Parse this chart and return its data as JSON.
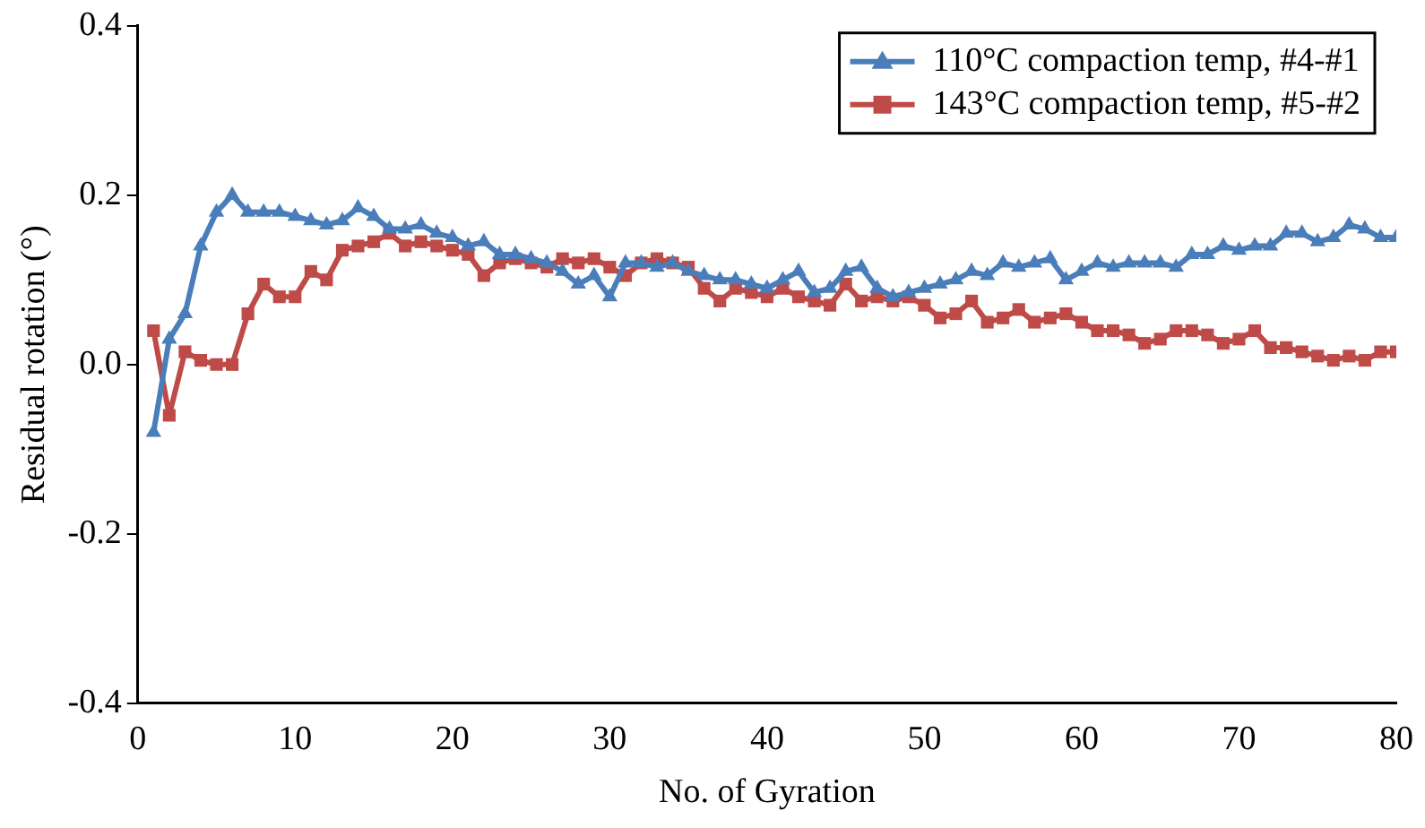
{
  "chart_data": {
    "type": "line",
    "xlabel": "No. of Gyration",
    "ylabel": "Residual rotation (°)",
    "x": [
      1,
      2,
      3,
      4,
      5,
      6,
      7,
      8,
      9,
      10,
      11,
      12,
      13,
      14,
      15,
      16,
      17,
      18,
      19,
      20,
      21,
      22,
      23,
      24,
      25,
      26,
      27,
      28,
      29,
      30,
      31,
      32,
      33,
      34,
      35,
      36,
      37,
      38,
      39,
      40,
      41,
      42,
      43,
      44,
      45,
      46,
      47,
      48,
      49,
      50,
      51,
      52,
      53,
      54,
      55,
      56,
      57,
      58,
      59,
      60,
      61,
      62,
      63,
      64,
      65,
      66,
      67,
      68,
      69,
      70,
      71,
      72,
      73,
      74,
      75,
      76,
      77,
      78,
      79,
      80
    ],
    "series": [
      {
        "name": "110°C compaction temp, #4-#1",
        "color": "#4a7ebb",
        "marker": "triangle",
        "values": [
          -0.08,
          0.03,
          0.06,
          0.14,
          0.18,
          0.2,
          0.18,
          0.18,
          0.18,
          0.175,
          0.17,
          0.165,
          0.17,
          0.185,
          0.175,
          0.16,
          0.16,
          0.165,
          0.155,
          0.15,
          0.14,
          0.145,
          0.13,
          0.13,
          0.125,
          0.12,
          0.11,
          0.095,
          0.105,
          0.08,
          0.12,
          0.12,
          0.115,
          0.12,
          0.11,
          0.105,
          0.1,
          0.1,
          0.095,
          0.09,
          0.1,
          0.11,
          0.085,
          0.09,
          0.11,
          0.115,
          0.09,
          0.08,
          0.085,
          0.09,
          0.095,
          0.1,
          0.11,
          0.105,
          0.12,
          0.115,
          0.12,
          0.125,
          0.1,
          0.11,
          0.12,
          0.115,
          0.12,
          0.12,
          0.12,
          0.115,
          0.13,
          0.13,
          0.14,
          0.135,
          0.14,
          0.14,
          0.155,
          0.155,
          0.145,
          0.15,
          0.165,
          0.16,
          0.15,
          0.15
        ]
      },
      {
        "name": "143°C compaction temp, #5-#2",
        "color": "#be4b48",
        "marker": "square",
        "values": [
          0.04,
          -0.06,
          0.015,
          0.005,
          0,
          0,
          0.06,
          0.095,
          0.08,
          0.08,
          0.11,
          0.1,
          0.135,
          0.14,
          0.145,
          0.155,
          0.14,
          0.145,
          0.14,
          0.135,
          0.13,
          0.105,
          0.12,
          0.125,
          0.12,
          0.115,
          0.125,
          0.12,
          0.125,
          0.115,
          0.105,
          0.12,
          0.125,
          0.12,
          0.115,
          0.09,
          0.075,
          0.09,
          0.085,
          0.08,
          0.09,
          0.08,
          0.075,
          0.07,
          0.095,
          0.075,
          0.08,
          0.075,
          0.08,
          0.07,
          0.055,
          0.06,
          0.075,
          0.05,
          0.055,
          0.065,
          0.05,
          0.055,
          0.06,
          0.05,
          0.04,
          0.04,
          0.035,
          0.025,
          0.03,
          0.04,
          0.04,
          0.035,
          0.025,
          0.03,
          0.04,
          0.02,
          0.02,
          0.015,
          0.01,
          0.005,
          0.01,
          0.005,
          0.015,
          0.015
        ]
      }
    ],
    "xlim": [
      0,
      80
    ],
    "xticks": [
      0,
      10,
      20,
      30,
      40,
      50,
      60,
      70,
      80
    ],
    "ylim": [
      -0.4,
      0.4
    ],
    "yticks": [
      {
        "value": -0.4,
        "label": "-0.4"
      },
      {
        "value": -0.2,
        "label": "-0.2"
      },
      {
        "value": 0,
        "label": "0.0"
      },
      {
        "value": 0.2,
        "label": "0.2"
      },
      {
        "value": 0.4,
        "label": "0.4"
      }
    ],
    "grid": false,
    "legend": "top right",
    "line_style": "solid"
  }
}
